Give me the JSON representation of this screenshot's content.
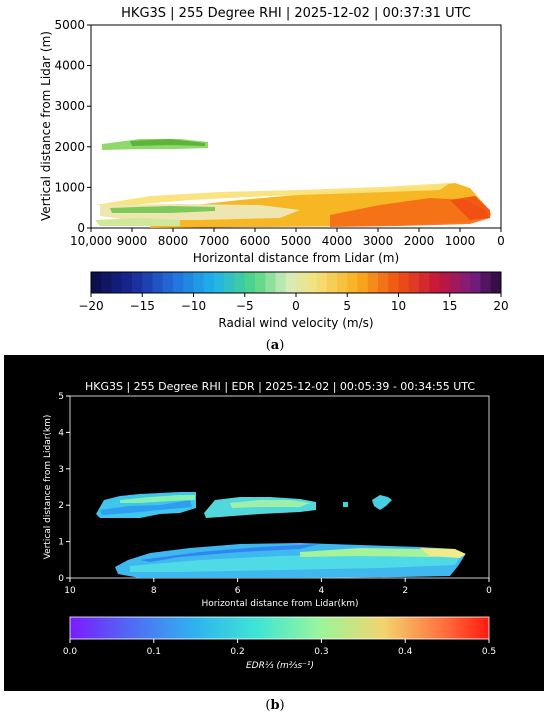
{
  "chart_data": [
    {
      "type": "heatmap",
      "title": "HKG3S | 255 Degree RHI | 2025-12-02 | 00:37:31 UTC",
      "xlabel": "Horizontal distance from Lidar (m)",
      "ylabel": "Vertical distance from Lidar (m)",
      "xlim": [
        10000,
        0
      ],
      "ylim": [
        0,
        5000
      ],
      "xticks": [
        "10,000",
        "9000",
        "8000",
        "7000",
        "6000",
        "5000",
        "4000",
        "3000",
        "2000",
        "1000",
        "0"
      ],
      "yticks": [
        "0",
        "1000",
        "2000",
        "3000",
        "4000",
        "5000"
      ],
      "colorbar": {
        "label": "Radial wind velocity (m/s)",
        "range": [
          -20,
          20
        ],
        "ticks": [
          "−20",
          "−15",
          "−10",
          "−5",
          "0",
          "5",
          "10",
          "15",
          "20"
        ]
      },
      "background": "#ffffff"
    },
    {
      "type": "heatmap",
      "title": "HKG3S | 255 Degree RHI | EDR | 2025-12-02 | 00:05:39 - 00:34:55 UTC",
      "xlabel": "Horizontal distance from Lidar(km)",
      "ylabel": "Vertical distance from Lidar(km)",
      "xlim": [
        10,
        0
      ],
      "ylim": [
        0,
        5
      ],
      "xticks": [
        "10",
        "8",
        "6",
        "4",
        "2",
        "0"
      ],
      "yticks": [
        "0",
        "1",
        "2",
        "3",
        "4",
        "5"
      ],
      "colorbar": {
        "label": "EDR⅓ (m⅔s⁻¹)",
        "range": [
          0.0,
          0.5
        ],
        "ticks": [
          "0.0",
          "0.1",
          "0.2",
          "0.3",
          "0.4",
          "0.5"
        ]
      },
      "background": "#000000"
    }
  ],
  "captions": {
    "a": "a",
    "b": "b"
  }
}
